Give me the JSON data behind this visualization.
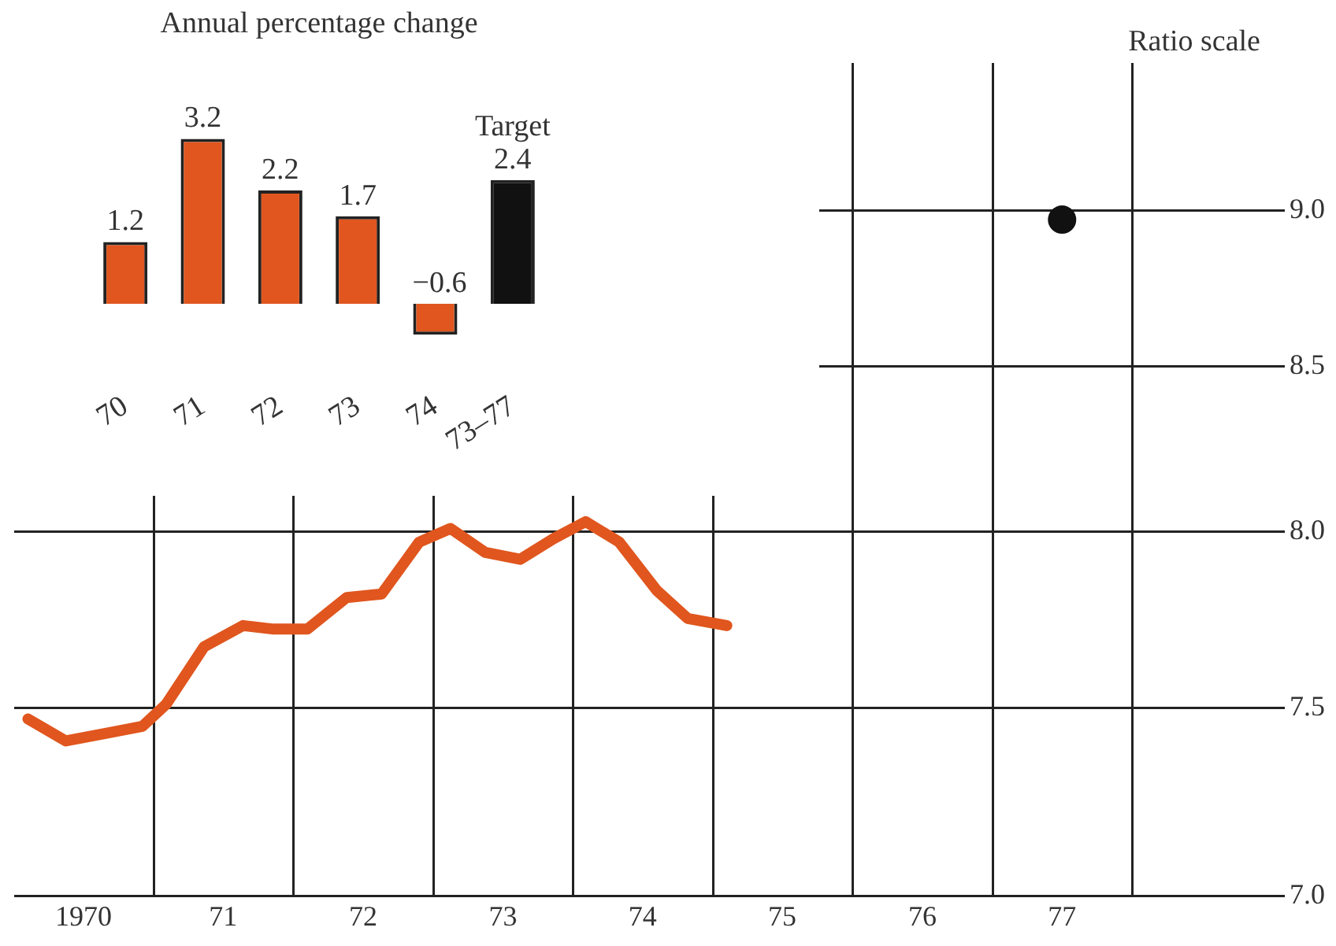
{
  "chart_data": [
    {
      "type": "line",
      "ylabel": "Ratio scale",
      "log": true,
      "grid": true,
      "xlim": [
        "1970-01-01",
        "1979-01-01"
      ],
      "xticks": [
        {
          "value": "1970-07-01",
          "label": "1970"
        },
        {
          "value": "1971-01-01",
          "label": null
        },
        {
          "value": "1971-07-01",
          "label": "71"
        },
        {
          "value": "1972-01-01",
          "label": null
        },
        {
          "value": "1972-07-01",
          "label": "72"
        },
        {
          "value": "1973-01-01",
          "label": null
        },
        {
          "value": "1973-07-01",
          "label": "73"
        },
        {
          "value": "1974-01-01",
          "label": null
        },
        {
          "value": "1974-07-01",
          "label": "74"
        },
        {
          "value": "1975-01-01",
          "label": null
        },
        {
          "value": "1975-07-01",
          "label": "75"
        },
        {
          "value": "1976-01-01",
          "label": null
        },
        {
          "value": "1976-07-01",
          "label": "76"
        },
        {
          "value": "1977-01-01",
          "label": null
        },
        {
          "value": "1977-07-01",
          "label": "77"
        },
        {
          "value": "1978-01-01",
          "label": null
        }
      ],
      "ylim": [
        7.0,
        9.5
      ],
      "yticks": [
        {
          "value": 7,
          "label": "7.0"
        },
        {
          "value": 7.5,
          "label": "7.5"
        },
        {
          "value": 8,
          "label": "8.0"
        },
        {
          "value": 8.5,
          "label": "8.5"
        },
        {
          "value": 9,
          "label": "9.0"
        }
      ],
      "series": [
        {
          "type": "line",
          "color": "#e0561e",
          "marker": "none",
          "line_style": "solid",
          "x": [
            "1970-02-06",
            "1970-05-16",
            "1970-08-25",
            "1970-12-02",
            "1971-02-02",
            "1971-05-12",
            "1971-08-22",
            "1971-11-10",
            "1972-02-06",
            "1972-05-19",
            "1972-08-18",
            "1972-11-24",
            "1973-02-14",
            "1973-05-16",
            "1973-08-15",
            "1973-11-10",
            "1974-02-02",
            "1974-05-01",
            "1974-08-07",
            "1974-10-27",
            "1975-02-06"
          ],
          "values": [
            7.47,
            7.41,
            7.43,
            7.45,
            7.51,
            7.67,
            7.73,
            7.72,
            7.72,
            7.81,
            7.82,
            7.97,
            8.01,
            7.94,
            7.92,
            7.98,
            8.03,
            7.97,
            7.83,
            7.75,
            7.73
          ]
        },
        {
          "type": "scatter",
          "color": "#111111",
          "marker": "circle",
          "x": [
            "1977-07-01"
          ],
          "values": [
            8.97
          ]
        }
      ]
    },
    {
      "type": "bar",
      "title": "Annual percentage change",
      "categories": [
        "70",
        "71",
        "72",
        "73",
        "74",
        "73–77"
      ],
      "values": [
        1.2,
        3.2,
        2.2,
        1.7,
        -0.6,
        2.4
      ],
      "colors": [
        "#e0561e",
        "#e0561e",
        "#e0561e",
        "#e0561e",
        "#e0561e",
        "#111111"
      ],
      "data_labels": true,
      "tick_labels": "x",
      "annotations": [
        {
          "text": "Target",
          "x": "73–77",
          "y": 2.4
        }
      ]
    }
  ]
}
